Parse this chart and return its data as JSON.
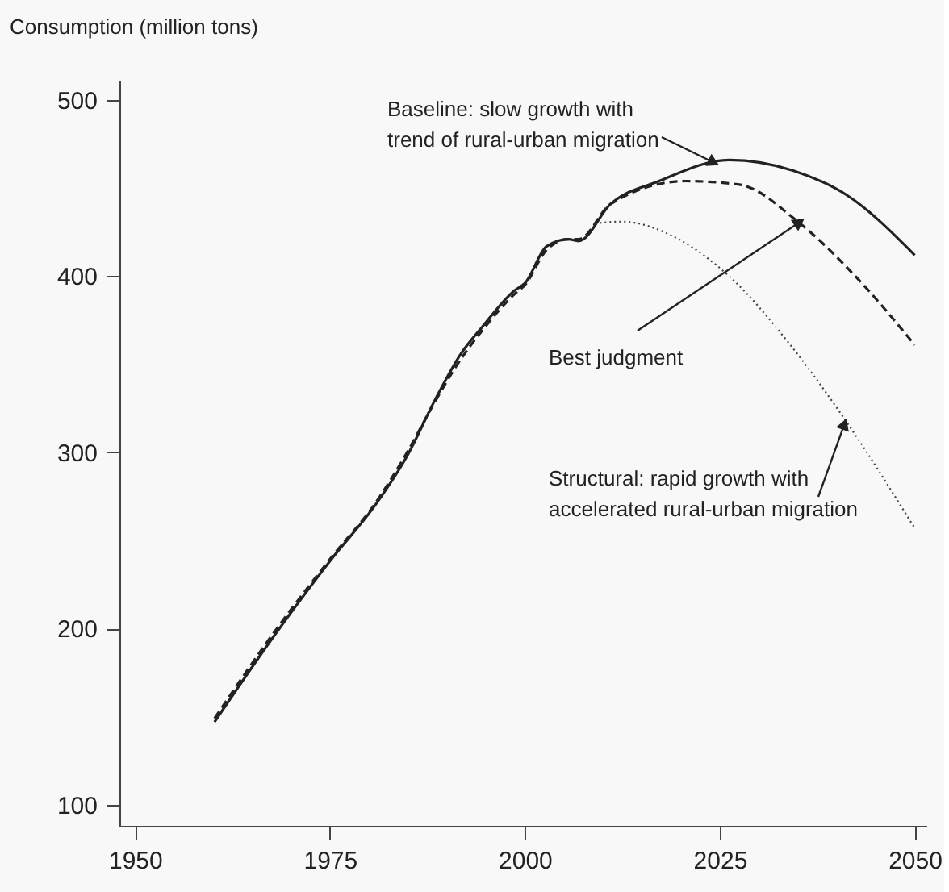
{
  "chart_data": {
    "type": "line",
    "ylabel": "Consumption (million tons)",
    "xlim": [
      1948,
      2051.5
    ],
    "ylim": [
      88,
      511
    ],
    "xticks": [
      1950,
      1975,
      2000,
      2025,
      2050
    ],
    "yticks": [
      100,
      200,
      300,
      400,
      500
    ],
    "grid": false,
    "series": [
      {
        "color": "#222222",
        "line_style": "solid",
        "x": [
          1960.2,
          1967.7,
          1975.3,
          1980.8,
          1984.9,
          1988.5,
          1991.8,
          1994.5,
          1998.7,
          2000,
          2002.8,
          2005.6,
          2006.9,
          2011,
          2017.2,
          2026.2,
          2034.4,
          2041.3,
          2050
        ],
        "values": [
          147,
          195,
          240,
          270,
          298,
          330,
          356,
          371,
          392,
          396,
          417,
          421,
          420,
          441,
          454,
          466,
          460,
          446,
          412
        ]
      },
      {
        "color": "#222222",
        "line_style": "dashed",
        "x": [
          1960.2,
          1967.7,
          1975.3,
          1980.8,
          1984.9,
          1988.5,
          1991.8,
          1994.5,
          1998.7,
          2000,
          2002.8,
          2005.6,
          2006.9,
          2011,
          2020.6,
          2027.5,
          2035,
          2042.6,
          2050
        ],
        "values": [
          149,
          197,
          241,
          271,
          300,
          329,
          353,
          369,
          390,
          395,
          415,
          421,
          421,
          441,
          454,
          452,
          431,
          399,
          361
        ]
      },
      {
        "color": "#444444",
        "line_style": "dotted",
        "x": [
          2009,
          2012.4,
          2019.3,
          2026.2,
          2034.4,
          2041.3,
          2050
        ],
        "values": [
          430,
          431,
          422,
          400,
          359,
          317,
          257
        ]
      }
    ],
    "annotations": [
      {
        "text": "Baseline: slow growth with\ntrend of rural-urban migration",
        "x": 2024,
        "y": 465
      },
      {
        "text": "Best judgment",
        "x": 2035,
        "y": 430
      },
      {
        "text": "Structural: rapid growth with\naccelerated rural-urban migration",
        "x": 2040.9,
        "y": 315
      }
    ]
  }
}
